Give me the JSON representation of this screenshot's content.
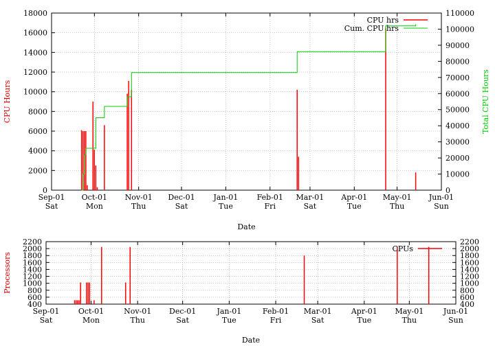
{
  "chart_data": [
    {
      "type": "line",
      "xlabel": "Date",
      "ylabel": "CPU Hours",
      "y2label": "Total CPU Hours",
      "ylim": [
        0,
        18000
      ],
      "y2lim": [
        0,
        110000
      ],
      "yticks": [
        0,
        2000,
        4000,
        6000,
        8000,
        10000,
        12000,
        14000,
        16000,
        18000
      ],
      "y2ticks": [
        0,
        10000,
        20000,
        30000,
        40000,
        50000,
        60000,
        70000,
        80000,
        90000,
        100000,
        110000
      ],
      "xlim": [
        "2001-09-01",
        "2002-06-01"
      ],
      "xticks": [
        {
          "date": "2001-09-01",
          "label": "Sep-01",
          "day": "Sat"
        },
        {
          "date": "2001-10-01",
          "label": "Oct-01",
          "day": "Mon"
        },
        {
          "date": "2001-11-01",
          "label": "Nov-01",
          "day": "Thu"
        },
        {
          "date": "2001-12-01",
          "label": "Dec-01",
          "day": "Sat"
        },
        {
          "date": "2002-01-01",
          "label": "Jan-01",
          "day": "Tue"
        },
        {
          "date": "2002-02-01",
          "label": "Feb-01",
          "day": "Fri"
        },
        {
          "date": "2002-03-01",
          "label": "Mar-01",
          "day": "Sat"
        },
        {
          "date": "2002-04-01",
          "label": "Apr-01",
          "day": "Tue"
        },
        {
          "date": "2002-05-01",
          "label": "May-01",
          "day": "Thu"
        },
        {
          "date": "2002-06-01",
          "label": "Jun-01",
          "day": "Sun"
        }
      ],
      "grid": true,
      "legend_position": "top-right",
      "series": [
        {
          "name": "CPU hrs",
          "color": "#ff0000",
          "style": "impulses",
          "points": [
            {
              "x": "2001-09-22",
              "y": 6100
            },
            {
              "x": "2001-09-23",
              "y": 6000
            },
            {
              "x": "2001-09-24",
              "y": 6000
            },
            {
              "x": "2001-09-25",
              "y": 6000
            },
            {
              "x": "2001-09-26",
              "y": 500
            },
            {
              "x": "2001-09-30",
              "y": 9000
            },
            {
              "x": "2001-10-01",
              "y": 4100
            },
            {
              "x": "2001-10-02",
              "y": 2500
            },
            {
              "x": "2001-10-03",
              "y": 300
            },
            {
              "x": "2001-10-08",
              "y": 6600
            },
            {
              "x": "2001-10-24",
              "y": 9800
            },
            {
              "x": "2001-10-25",
              "y": 11100
            },
            {
              "x": "2001-10-27",
              "y": 10200
            },
            {
              "x": "2002-02-20",
              "y": 10200
            },
            {
              "x": "2002-02-21",
              "y": 3400
            },
            {
              "x": "2002-04-23",
              "y": 16500
            },
            {
              "x": "2002-05-14",
              "y": 1800
            }
          ]
        },
        {
          "name": "Cum. CPU hrs",
          "color": "#00cc00",
          "style": "steps",
          "axis": "right",
          "points": [
            {
              "x": "2001-09-22",
              "y": 0
            },
            {
              "x": "2001-09-23",
              "y": 10000
            },
            {
              "x": "2001-09-24",
              "y": 22000
            },
            {
              "x": "2001-09-25",
              "y": 26000
            },
            {
              "x": "2001-10-02",
              "y": 45000
            },
            {
              "x": "2001-10-08",
              "y": 52000
            },
            {
              "x": "2001-10-24",
              "y": 58000
            },
            {
              "x": "2001-10-27",
              "y": 73000
            },
            {
              "x": "2002-02-20",
              "y": 86000
            },
            {
              "x": "2002-04-23",
              "y": 102000
            },
            {
              "x": "2002-05-14",
              "y": 103000
            }
          ]
        }
      ]
    },
    {
      "type": "line",
      "xlabel": "Date",
      "ylabel": "Processors",
      "ylim": [
        400,
        2200
      ],
      "yticks": [
        400,
        600,
        800,
        1000,
        1200,
        1400,
        1600,
        1800,
        2000,
        2200
      ],
      "y2ticks": [
        400,
        600,
        800,
        1000,
        1200,
        1400,
        1600,
        1800,
        2000,
        2200
      ],
      "xlim": [
        "2001-09-01",
        "2002-06-01"
      ],
      "xticks": [
        {
          "date": "2001-09-01",
          "label": "Sep-01",
          "day": "Sat"
        },
        {
          "date": "2001-10-01",
          "label": "Oct-01",
          "day": "Mon"
        },
        {
          "date": "2001-11-01",
          "label": "Nov-01",
          "day": "Thu"
        },
        {
          "date": "2001-12-01",
          "label": "Dec-01",
          "day": "Sat"
        },
        {
          "date": "2002-01-01",
          "label": "Jan-01",
          "day": "Tue"
        },
        {
          "date": "2002-02-01",
          "label": "Feb-01",
          "day": "Fri"
        },
        {
          "date": "2002-03-01",
          "label": "Mar-01",
          "day": "Sat"
        },
        {
          "date": "2002-04-01",
          "label": "Apr-01",
          "day": "Tue"
        },
        {
          "date": "2002-05-01",
          "label": "May-01",
          "day": "Thu"
        },
        {
          "date": "2002-06-01",
          "label": "Jun-01",
          "day": "Sun"
        }
      ],
      "grid": true,
      "legend_position": "top-right",
      "series": [
        {
          "name": "CPUs",
          "color": "#ff0000",
          "style": "impulses",
          "points": [
            {
              "x": "2001-09-20",
              "y": 512
            },
            {
              "x": "2001-09-21",
              "y": 512
            },
            {
              "x": "2001-09-22",
              "y": 512
            },
            {
              "x": "2001-09-23",
              "y": 512
            },
            {
              "x": "2001-09-24",
              "y": 1024
            },
            {
              "x": "2001-09-28",
              "y": 1024
            },
            {
              "x": "2001-09-29",
              "y": 1024
            },
            {
              "x": "2001-09-30",
              "y": 1024
            },
            {
              "x": "2001-10-03",
              "y": 512
            },
            {
              "x": "2001-10-08",
              "y": 2048
            },
            {
              "x": "2001-10-24",
              "y": 1024
            },
            {
              "x": "2001-10-27",
              "y": 2048
            },
            {
              "x": "2002-02-20",
              "y": 1800
            },
            {
              "x": "2002-04-23",
              "y": 2048
            },
            {
              "x": "2002-05-14",
              "y": 2048
            }
          ]
        }
      ]
    }
  ]
}
